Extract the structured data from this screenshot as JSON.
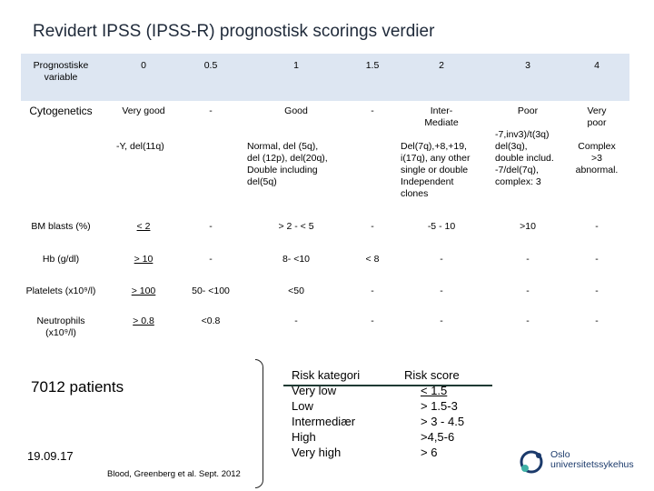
{
  "title": "Revidert IPSS (IPSS-R) prognostisk scorings verdier",
  "table": {
    "header": {
      "label": "Prognostiske variable",
      "cols": [
        "0",
        "0.5",
        "1",
        "1.5",
        "2",
        "3",
        "4"
      ]
    },
    "cytogenetics": {
      "label": "Cytogenetics",
      "values": [
        "Very good",
        "-",
        "Good",
        "-",
        "Inter-\nMediate",
        "Poor",
        "Very\npoor"
      ],
      "details": {
        "c0": "-Y, del(11q)",
        "c1": "Normal, del (5q),\ndel (12p), del(20q),\nDouble including\ndel(5q)",
        "c2": "Del(7q),+8,+19,\ni(17q), any other\nsingle or double\nIndependent\nclones",
        "c3": "-7,inv3)/t(3q)\ndel(3q),\ndouble includ.\n-7/del(7q),\ncomplex: 3",
        "c4": "Complex\n>3\nabnormal."
      }
    },
    "bm_blasts": {
      "label": "BM blasts (%)",
      "values": [
        "< 2",
        "-",
        "> 2 - < 5",
        "-",
        "-5 - 10",
        ">10",
        "-"
      ]
    },
    "hb": {
      "label": "Hb (g/dl)",
      "values": [
        "> 10",
        "-",
        "8- <10",
        "< 8",
        "-",
        "-",
        "-"
      ]
    },
    "platelets": {
      "label": "Platelets (x10⁹/l)",
      "values": [
        "> 100",
        "50- <100",
        "<50",
        "-",
        "-",
        "-",
        "-"
      ]
    },
    "neutrophils": {
      "label": "Neutrophils\n(x10⁹/l)",
      "values": [
        "> 0.8",
        "<0.8",
        "-",
        "-",
        "-",
        "-",
        "-"
      ]
    }
  },
  "patients": "7012 patients",
  "date": "19.09.17",
  "citation": "Blood, Greenberg et al. Sept. 2012",
  "risk": {
    "categories_header": "Risk kategori",
    "categories": [
      "Very low",
      "Low",
      "Intermediær",
      "High",
      "Very high"
    ],
    "score_header": "Risk score",
    "scores": [
      "< 1.5",
      "> 1.5-3",
      "> 3 -  4.5",
      ">4,5-6",
      "> 6"
    ]
  },
  "logo": {
    "line1": "Oslo",
    "line2": "universitetssykehus"
  },
  "colors": {
    "header_band": "#dde6f2",
    "logo_blue": "#1b3a6b",
    "title": "#1f2a3a"
  }
}
